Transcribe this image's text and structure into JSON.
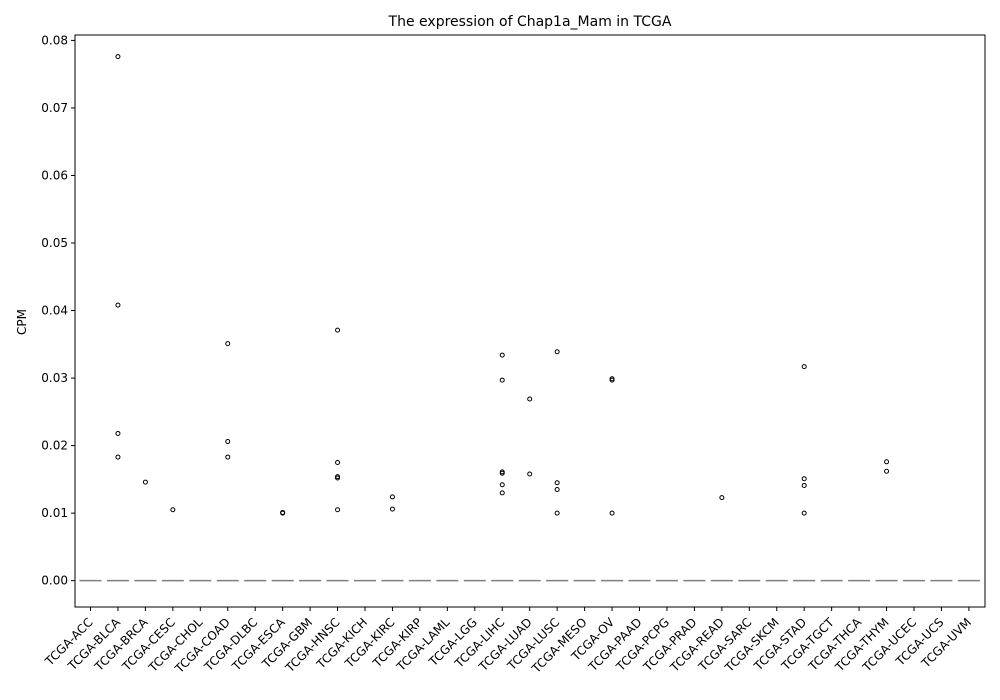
{
  "chart_data": {
    "type": "box",
    "title": "The expression of Chap1a_Mam in TCGA",
    "xlabel": "",
    "ylabel": "CPM",
    "ylim": [
      -0.0039,
      0.0808
    ],
    "yticks": [
      "0.00",
      "0.01",
      "0.02",
      "0.03",
      "0.04",
      "0.05",
      "0.06",
      "0.07",
      "0.08"
    ],
    "grid": false,
    "median_color": "#7f7f7f",
    "categories": [
      "TCGA-ACC",
      "TCGA-BLCA",
      "TCGA-BRCA",
      "TCGA-CESC",
      "TCGA-CHOL",
      "TCGA-COAD",
      "TCGA-DLBC",
      "TCGA-ESCA",
      "TCGA-GBM",
      "TCGA-HNSC",
      "TCGA-KICH",
      "TCGA-KIRC",
      "TCGA-KIRP",
      "TCGA-LAML",
      "TCGA-LGG",
      "TCGA-LIHC",
      "TCGA-LUAD",
      "TCGA-LUSC",
      "TCGA-MESO",
      "TCGA-OV",
      "TCGA-PAAD",
      "TCGA-PCPG",
      "TCGA-PRAD",
      "TCGA-READ",
      "TCGA-SARC",
      "TCGA-SKCM",
      "TCGA-STAD",
      "TCGA-TGCT",
      "TCGA-THCA",
      "TCGA-THYM",
      "TCGA-UCEC",
      "TCGA-UCS",
      "TCGA-UVM"
    ],
    "medians": [
      0,
      0,
      0,
      0,
      0,
      0,
      0,
      0,
      0,
      0,
      0,
      0,
      0,
      0,
      0,
      0,
      0,
      0,
      0,
      0,
      0,
      0,
      0,
      0,
      0,
      0,
      0,
      0,
      0,
      0,
      0,
      0,
      0
    ],
    "outliers": [
      [],
      [
        0.0776,
        0.0408,
        0.0218,
        0.0183
      ],
      [
        0.0146
      ],
      [
        0.0105
      ],
      [],
      [
        0.0351,
        0.0206,
        0.0183
      ],
      [],
      [
        0.0101,
        0.01
      ],
      [],
      [
        0.0371,
        0.0175,
        0.0154,
        0.0152,
        0.0105
      ],
      [],
      [
        0.0124,
        0.0106
      ],
      [],
      [],
      [],
      [
        0.0334,
        0.0297,
        0.0161,
        0.0159,
        0.0142,
        0.013
      ],
      [
        0.0269,
        0.0158
      ],
      [
        0.0339,
        0.0145,
        0.0135,
        0.01
      ],
      [],
      [
        0.0299,
        0.0297,
        0.01
      ],
      [],
      [],
      [],
      [
        0.0123
      ],
      [],
      [],
      [
        0.0317,
        0.0151,
        0.0141,
        0.01
      ],
      [],
      [],
      [
        0.0176,
        0.0162
      ],
      [],
      [],
      []
    ]
  }
}
